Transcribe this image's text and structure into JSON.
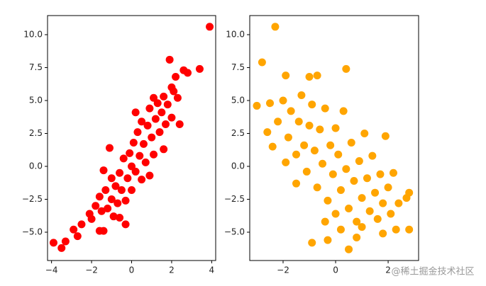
{
  "chart_data": [
    {
      "type": "scatter",
      "color": "#ff0000",
      "x": [
        3.9,
        3.4,
        2.8,
        2.6,
        2.2,
        -3.9,
        -3.5,
        -3.3,
        -2.9,
        -2.5,
        -2.7,
        -1.6,
        -1.4,
        -2.1,
        1.9,
        2.1,
        -1.1,
        0.9,
        2.4,
        -0.3,
        -2,
        -1.8,
        -1.6,
        -1.5,
        -1.3,
        -1.2,
        -1,
        -1,
        -0.9,
        -0.8,
        -0.7,
        -0.6,
        -0.5,
        -0.4,
        -0.3,
        -0.2,
        -0.1,
        0,
        0,
        0.1,
        0.2,
        0.3,
        0.4,
        0.5,
        0.5,
        0.6,
        0.7,
        0.8,
        0.9,
        1,
        1.1,
        1.2,
        1.3,
        1.4,
        1.5,
        1.6,
        1.7,
        1.8,
        2,
        2,
        1.1,
        -1.4,
        0.2,
        -0.6,
        1.6,
        2.3
      ],
      "values": [
        10.6,
        7.4,
        7.1,
        7.3,
        6.8,
        -5.8,
        -6.2,
        -5.7,
        -4.8,
        -4.4,
        -5.3,
        -4.9,
        -4.9,
        -3.6,
        8.1,
        5.7,
        1.4,
        -0.7,
        3.2,
        -4.4,
        -4,
        -3,
        -2.3,
        -3.4,
        -1.8,
        -3.2,
        -2.5,
        -0.9,
        -3.8,
        -1.5,
        -2.8,
        -0.5,
        -1.8,
        0.6,
        -2.6,
        -0.9,
        1,
        0,
        -1.8,
        1.8,
        -0.4,
        2.6,
        0.8,
        -1,
        3.4,
        1.7,
        0.3,
        3.1,
        4.4,
        2.2,
        0.9,
        3.6,
        4.8,
        2.6,
        4.1,
        5.3,
        3.2,
        4.7,
        6,
        3.7,
        5.2,
        -0.3,
        4.1,
        -3.9,
        1.3,
        5.2
      ],
      "xlim": [
        -4.2,
        4.2
      ],
      "ylim": [
        -7.15,
        11.45
      ],
      "xticks": [
        {
          "value": -4,
          "label": "−4"
        },
        {
          "value": -2,
          "label": "−2"
        },
        0,
        2,
        4
      ],
      "yticks": [
        {
          "value": -5,
          "label": "−5.0"
        },
        {
          "value": -2.5,
          "label": "−2.5"
        },
        {
          "value": 0,
          "label": "0.0"
        },
        {
          "value": 2.5,
          "label": "2.5"
        },
        {
          "value": 5,
          "label": "5.0"
        },
        {
          "value": 7.5,
          "label": "7.5"
        },
        {
          "value": 10,
          "label": "10.0"
        }
      ]
    },
    {
      "type": "scatter",
      "color": "#ffa500",
      "x": [
        -2.3,
        -2.8,
        -1.9,
        -1,
        -0.7,
        0.4,
        -0.9,
        0.5,
        2.8,
        2.7,
        2.8,
        2.3,
        1.8,
        -3,
        -2.4,
        -1.5,
        1.9,
        2.2,
        0.8,
        -0.3,
        -2.5,
        -2.2,
        -2,
        -1.8,
        -1.7,
        -1.5,
        -1.4,
        -1.3,
        -1.2,
        -1.1,
        -1,
        -0.9,
        -0.8,
        -0.7,
        -0.6,
        -0.5,
        -0.4,
        -0.3,
        -0.2,
        -0.1,
        0,
        0,
        0.1,
        0.2,
        0.3,
        0.4,
        0.5,
        0.6,
        0.7,
        0.8,
        0.9,
        1,
        1.1,
        1.2,
        1.3,
        1.4,
        1.5,
        1.6,
        1.7,
        1.8,
        2,
        2.1,
        -1.9,
        1,
        0.2,
        -0.4,
        2.4,
        -2.6
      ],
      "values": [
        10.6,
        7.9,
        6.9,
        6.8,
        6.9,
        7.4,
        -5.8,
        -6.3,
        -2,
        -2.4,
        -4.8,
        -4.8,
        -5.1,
        4.6,
        1.5,
        -1.3,
        2.3,
        -0.5,
        -5.4,
        -5.6,
        4.8,
        3.4,
        5,
        2.2,
        4.2,
        0.9,
        3.4,
        5.4,
        1.6,
        -0.4,
        3.1,
        4.7,
        1.2,
        -1.6,
        2.8,
        0.2,
        4.4,
        -2.6,
        1.6,
        -0.6,
        2.9,
        -3.6,
        0.9,
        -1.8,
        4.2,
        -0.2,
        -3.2,
        1.8,
        -1.1,
        -4.2,
        0.4,
        -2.4,
        2.5,
        -0.9,
        -3.4,
        0.8,
        -2,
        -4,
        -0.6,
        -2.8,
        -1.6,
        -3.6,
        0.3,
        -4.6,
        -4.8,
        -4.2,
        -2.8,
        2.6
      ],
      "xlim": [
        -3.27,
        3.16
      ],
      "ylim": [
        -7.15,
        11.45
      ],
      "xticks": [
        {
          "value": -2,
          "label": "−2"
        },
        0,
        2
      ],
      "yticks": [
        {
          "value": -5,
          "label": "−5.0"
        },
        {
          "value": -2.5,
          "label": "−2.5"
        },
        {
          "value": 0,
          "label": "0.0"
        },
        {
          "value": 2.5,
          "label": "2.5"
        },
        {
          "value": 5,
          "label": "5.0"
        },
        {
          "value": 7.5,
          "label": "7.5"
        },
        {
          "value": 10,
          "label": "10.0"
        }
      ]
    }
  ],
  "watermark": "@稀土掘金技术社区"
}
